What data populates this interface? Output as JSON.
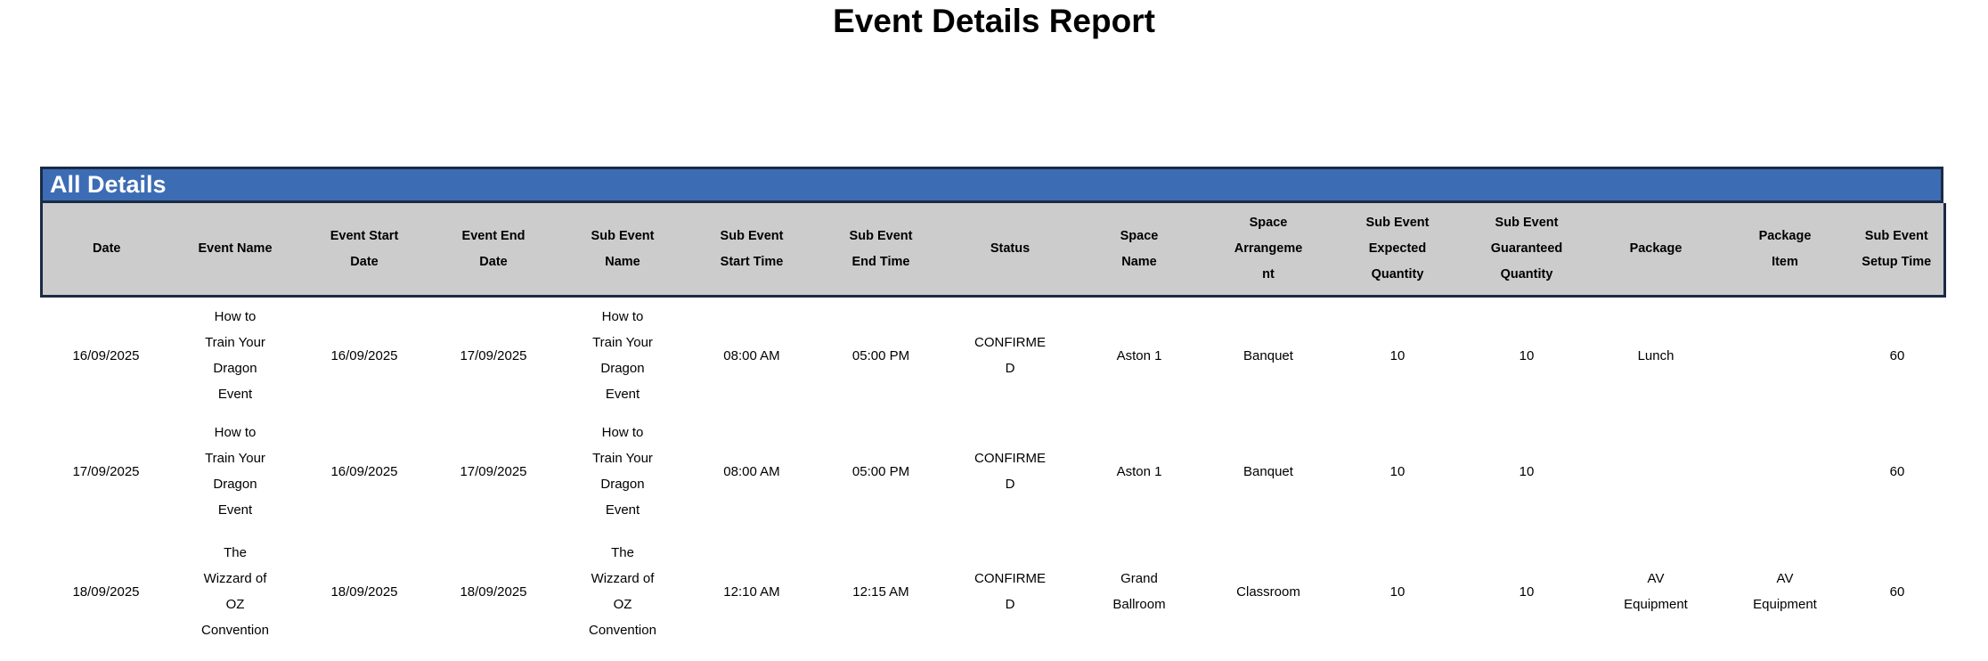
{
  "page": {
    "title": "Event Details Report"
  },
  "section": {
    "title": "All Details"
  },
  "table": {
    "columns": [
      "Date",
      "Event Name",
      "Event Start Date",
      "Event End Date",
      "Sub Event Name",
      "Sub Event Start Time",
      "Sub Event End Time",
      "Status",
      "Space Name",
      "Space Arrangement",
      "Sub Event Expected Quantity",
      "Sub Event Guaranteed Quantity",
      "Package",
      "Package Item",
      "Sub Event Setup Time"
    ],
    "rows": [
      [
        "16/09/2025",
        "How to Train Your Dragon Event",
        "16/09/2025",
        "17/09/2025",
        "How to Train Your Dragon Event",
        "08:00 AM",
        "05:00 PM",
        "CONFIRMED",
        "Aston 1",
        "Banquet",
        "10",
        "10",
        "Lunch",
        "",
        "60"
      ],
      [
        "17/09/2025",
        "How to Train Your Dragon Event",
        "16/09/2025",
        "17/09/2025",
        "How to Train Your Dragon Event",
        "08:00 AM",
        "05:00 PM",
        "CONFIRMED",
        "Aston 1",
        "Banquet",
        "10",
        "10",
        "",
        "",
        "60"
      ],
      [
        "18/09/2025",
        "The Wizzard of OZ Convention",
        "18/09/2025",
        "18/09/2025",
        "The Wizzard of OZ Convention",
        "12:10 AM",
        "12:15 AM",
        "CONFIRMED",
        "Grand Ballroom",
        "Classroom",
        "10",
        "10",
        "AV Equipment",
        "AV Equipment",
        "60"
      ]
    ]
  },
  "colors": {
    "band_blue": "#3C6CB4",
    "band_border": "#1B2B45",
    "header_gray": "#CCCCCC"
  }
}
